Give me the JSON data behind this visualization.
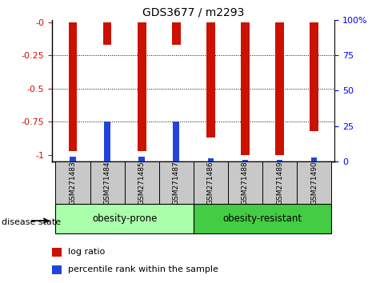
{
  "title": "GDS3677 / m2293",
  "samples": [
    "GSM271483",
    "GSM271484",
    "GSM271485",
    "GSM271487",
    "GSM271486",
    "GSM271488",
    "GSM271489",
    "GSM271490"
  ],
  "log_ratio": [
    -0.97,
    -0.17,
    -0.97,
    -0.17,
    -0.87,
    -1.0,
    -1.0,
    -0.82
  ],
  "percentile_rank": [
    3.0,
    28.0,
    3.5,
    28.0,
    2.0,
    1.0,
    1.0,
    2.5
  ],
  "groups": [
    {
      "label": "obesity-prone",
      "indices": [
        0,
        1,
        2,
        3
      ],
      "color": "#aaffaa"
    },
    {
      "label": "obesity-resistant",
      "indices": [
        4,
        5,
        6,
        7
      ],
      "color": "#44cc44"
    }
  ],
  "ylim_left": [
    -1.05,
    0.02
  ],
  "ylim_right": [
    -0.0,
    100.0
  ],
  "yticks_left": [
    0,
    -0.25,
    -0.5,
    -0.75,
    -1.0
  ],
  "ytick_labels_left": [
    "-0",
    "-0.25",
    "-0.5",
    "-0.75",
    "-1"
  ],
  "yticks_right": [
    0,
    25,
    50,
    75,
    100
  ],
  "bar_color": "#CC1100",
  "blue_color": "#2244DD",
  "xlabel_disease": "disease state",
  "legend_logratio": "log ratio",
  "legend_percentile": "percentile rank within the sample",
  "bar_width": 0.25
}
